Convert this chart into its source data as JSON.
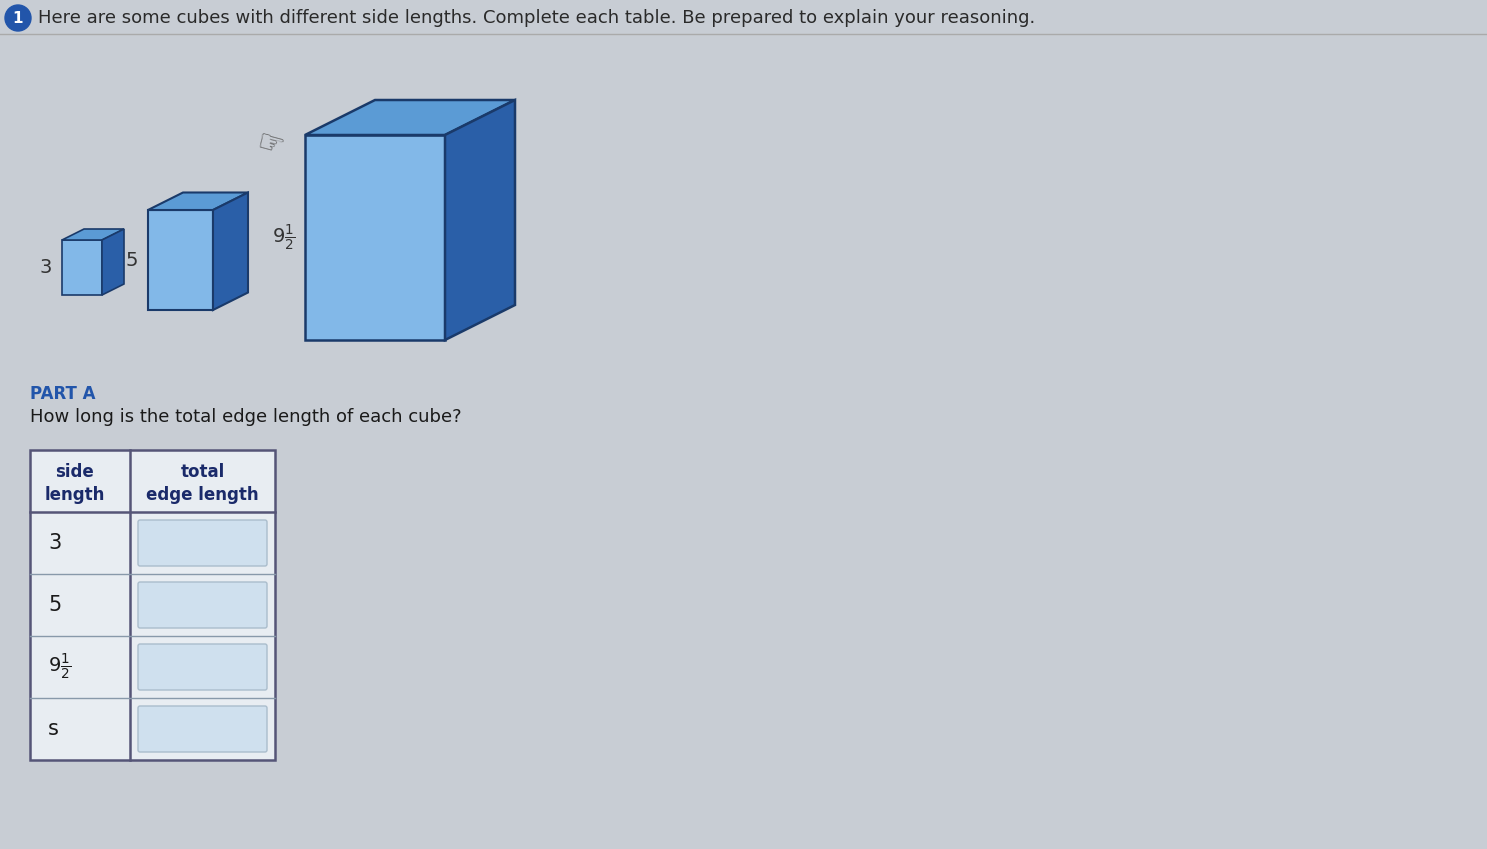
{
  "title_number": "1",
  "title_text": "Here are some cubes with different side lengths. Complete each table. Be prepared to explain your reasoning.",
  "title_color": "#2a2a2a",
  "circle_color": "#2255aa",
  "bg_color": "#c8cdd4",
  "page_bg": "#d4d8de",
  "cube_top_color": "#5b9bd5",
  "cube_front_color": "#82b8e8",
  "cube_side_color": "#2a5fa8",
  "cube_edge_color": "#1a3a6a",
  "part_a_label": "PART A",
  "part_a_color": "#2255aa",
  "question_text": "How long is the total edge length of each cube?",
  "question_color": "#1a1a1a",
  "table_header_text_color": "#1a2a6a",
  "row_text_color": "#1a1a1a",
  "input_box_color": "#cfe0ee",
  "input_box_border": "#aabdcc",
  "table_line_color": "#555577",
  "header_bg": "#c8d8e8"
}
